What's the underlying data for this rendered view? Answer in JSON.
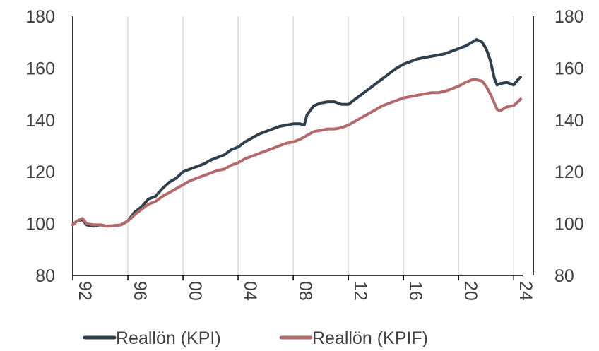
{
  "chart_data": {
    "type": "line",
    "x_axis": {
      "min_year": 1992,
      "max_year": 2024.5,
      "tick_years": [
        1992,
        1996,
        2000,
        2004,
        2008,
        2012,
        2016,
        2020,
        2024
      ],
      "tick_labels": [
        "92",
        "96",
        "00",
        "04",
        "08",
        "12",
        "16",
        "20",
        "24"
      ],
      "label_rotation_deg": 90
    },
    "y_axis": {
      "ylim": [
        80,
        180
      ],
      "ticks": [
        80,
        100,
        120,
        140,
        160,
        180
      ],
      "left_tick_labels": [
        "80",
        "100",
        "120",
        "140",
        "160",
        "180"
      ],
      "right_tick_labels": [
        "80",
        "100",
        "120",
        "140",
        "160",
        "180"
      ]
    },
    "grid": "vertical",
    "legend_position": "bottom",
    "series": [
      {
        "name": "Reallön (KPI)",
        "color": "#2e3f4d",
        "points": [
          [
            1992.0,
            99.5
          ],
          [
            1992.3,
            101.0
          ],
          [
            1992.7,
            101.5
          ],
          [
            1993.0,
            99.5
          ],
          [
            1993.5,
            99.0
          ],
          [
            1994.0,
            99.5
          ],
          [
            1994.5,
            99.0
          ],
          [
            1995.0,
            99.2
          ],
          [
            1995.5,
            99.5
          ],
          [
            1996.0,
            101.0
          ],
          [
            1996.5,
            104.5
          ],
          [
            1997.0,
            106.5
          ],
          [
            1997.5,
            109.5
          ],
          [
            1998.0,
            110.5
          ],
          [
            1998.5,
            113.5
          ],
          [
            1999.0,
            116.0
          ],
          [
            1999.5,
            117.5
          ],
          [
            2000.0,
            120.0
          ],
          [
            2000.5,
            121.0
          ],
          [
            2001.0,
            122.0
          ],
          [
            2001.5,
            123.0
          ],
          [
            2002.0,
            124.5
          ],
          [
            2002.5,
            125.5
          ],
          [
            2003.0,
            126.5
          ],
          [
            2003.5,
            128.5
          ],
          [
            2004.0,
            129.5
          ],
          [
            2004.5,
            131.5
          ],
          [
            2005.0,
            133.0
          ],
          [
            2005.5,
            134.5
          ],
          [
            2006.0,
            135.5
          ],
          [
            2006.5,
            136.5
          ],
          [
            2007.0,
            137.5
          ],
          [
            2007.5,
            138.0
          ],
          [
            2008.0,
            138.5
          ],
          [
            2008.5,
            138.5
          ],
          [
            2008.8,
            138.0
          ],
          [
            2009.0,
            142.0
          ],
          [
            2009.5,
            145.5
          ],
          [
            2010.0,
            146.5
          ],
          [
            2010.5,
            147.0
          ],
          [
            2011.0,
            147.0
          ],
          [
            2011.5,
            146.0
          ],
          [
            2012.0,
            146.0
          ],
          [
            2012.5,
            148.0
          ],
          [
            2013.0,
            150.0
          ],
          [
            2013.5,
            152.0
          ],
          [
            2014.0,
            154.0
          ],
          [
            2014.5,
            156.0
          ],
          [
            2015.0,
            158.0
          ],
          [
            2015.5,
            160.0
          ],
          [
            2016.0,
            161.5
          ],
          [
            2016.5,
            162.5
          ],
          [
            2017.0,
            163.5
          ],
          [
            2017.5,
            164.0
          ],
          [
            2018.0,
            164.5
          ],
          [
            2018.5,
            165.0
          ],
          [
            2019.0,
            165.5
          ],
          [
            2019.5,
            166.5
          ],
          [
            2020.0,
            167.5
          ],
          [
            2020.5,
            168.5
          ],
          [
            2021.0,
            170.0
          ],
          [
            2021.3,
            171.0
          ],
          [
            2021.7,
            170.0
          ],
          [
            2022.0,
            167.5
          ],
          [
            2022.3,
            163.0
          ],
          [
            2022.6,
            156.0
          ],
          [
            2022.8,
            153.5
          ],
          [
            2023.0,
            154.0
          ],
          [
            2023.5,
            154.5
          ],
          [
            2024.0,
            153.5
          ],
          [
            2024.3,
            155.5
          ],
          [
            2024.5,
            156.5
          ]
        ]
      },
      {
        "name": "Reallön (KPIF)",
        "color": "#b46a6a",
        "points": [
          [
            1992.0,
            99.5
          ],
          [
            1992.3,
            101.0
          ],
          [
            1992.7,
            102.0
          ],
          [
            1993.0,
            100.0
          ],
          [
            1993.5,
            99.5
          ],
          [
            1994.0,
            99.5
          ],
          [
            1994.5,
            99.0
          ],
          [
            1995.0,
            99.2
          ],
          [
            1995.5,
            99.5
          ],
          [
            1996.0,
            101.0
          ],
          [
            1996.5,
            103.5
          ],
          [
            1997.0,
            105.5
          ],
          [
            1997.5,
            107.5
          ],
          [
            1998.0,
            108.5
          ],
          [
            1998.5,
            110.5
          ],
          [
            1999.0,
            112.0
          ],
          [
            1999.5,
            113.5
          ],
          [
            2000.0,
            115.0
          ],
          [
            2000.5,
            116.5
          ],
          [
            2001.0,
            117.5
          ],
          [
            2001.5,
            118.5
          ],
          [
            2002.0,
            119.5
          ],
          [
            2002.5,
            120.5
          ],
          [
            2003.0,
            121.0
          ],
          [
            2003.5,
            122.5
          ],
          [
            2004.0,
            123.5
          ],
          [
            2004.5,
            125.0
          ],
          [
            2005.0,
            126.0
          ],
          [
            2005.5,
            127.0
          ],
          [
            2006.0,
            128.0
          ],
          [
            2006.5,
            129.0
          ],
          [
            2007.0,
            130.0
          ],
          [
            2007.5,
            131.0
          ],
          [
            2008.0,
            131.5
          ],
          [
            2008.5,
            132.5
          ],
          [
            2009.0,
            134.0
          ],
          [
            2009.5,
            135.5
          ],
          [
            2010.0,
            136.0
          ],
          [
            2010.5,
            136.5
          ],
          [
            2011.0,
            136.5
          ],
          [
            2011.5,
            137.0
          ],
          [
            2012.0,
            138.0
          ],
          [
            2012.5,
            139.5
          ],
          [
            2013.0,
            141.0
          ],
          [
            2013.5,
            142.5
          ],
          [
            2014.0,
            144.0
          ],
          [
            2014.5,
            145.5
          ],
          [
            2015.0,
            146.5
          ],
          [
            2015.5,
            147.5
          ],
          [
            2016.0,
            148.5
          ],
          [
            2016.5,
            149.0
          ],
          [
            2017.0,
            149.5
          ],
          [
            2017.5,
            150.0
          ],
          [
            2018.0,
            150.5
          ],
          [
            2018.5,
            150.5
          ],
          [
            2019.0,
            151.0
          ],
          [
            2019.5,
            152.0
          ],
          [
            2020.0,
            153.0
          ],
          [
            2020.5,
            154.5
          ],
          [
            2021.0,
            155.5
          ],
          [
            2021.3,
            155.5
          ],
          [
            2021.7,
            155.0
          ],
          [
            2022.0,
            153.0
          ],
          [
            2022.3,
            150.0
          ],
          [
            2022.6,
            146.5
          ],
          [
            2022.8,
            144.0
          ],
          [
            2023.0,
            143.5
          ],
          [
            2023.5,
            145.0
          ],
          [
            2024.0,
            145.5
          ],
          [
            2024.3,
            147.0
          ],
          [
            2024.5,
            148.0
          ]
        ]
      }
    ]
  }
}
